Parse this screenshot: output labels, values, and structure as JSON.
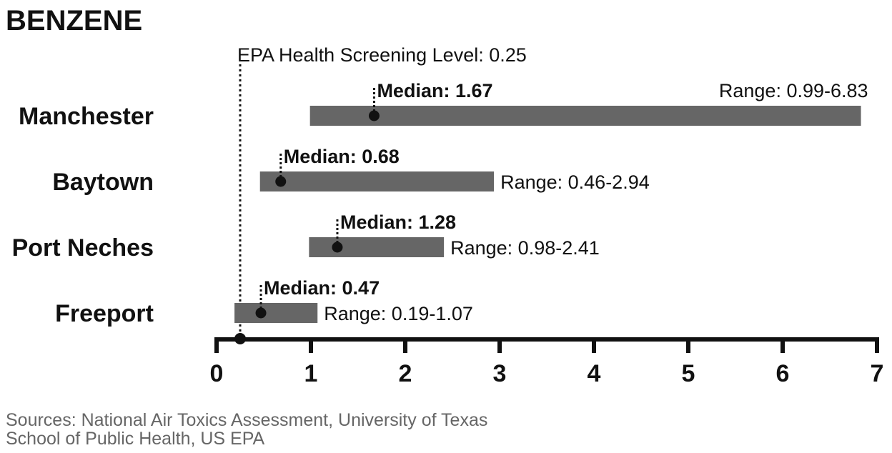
{
  "chart_data": {
    "type": "range-bar",
    "title": "BENZENE",
    "xlim": [
      0,
      7
    ],
    "x_ticks": [
      "0",
      "1",
      "2",
      "3",
      "4",
      "5",
      "6",
      "7"
    ],
    "reference_line": {
      "value": 0.25,
      "label": "EPA Health Screening Level: 0.25"
    },
    "categories": [
      "Manchester",
      "Baytown",
      "Port Neches",
      "Freeport"
    ],
    "series": [
      {
        "city": "Manchester",
        "min": 0.99,
        "max": 6.83,
        "median": 1.67,
        "median_label": "Median: 1.67",
        "range_label": "Range: 0.99-6.83",
        "range_label_position": "above-right"
      },
      {
        "city": "Baytown",
        "min": 0.46,
        "max": 2.94,
        "median": 0.68,
        "median_label": "Median: 0.68",
        "range_label": "Range: 0.46-2.94",
        "range_label_position": "right"
      },
      {
        "city": "Port Neches",
        "min": 0.98,
        "max": 2.41,
        "median": 1.28,
        "median_label": "Median: 1.28",
        "range_label": "Range: 0.98-2.41",
        "range_label_position": "right"
      },
      {
        "city": "Freeport",
        "min": 0.19,
        "max": 1.07,
        "median": 0.47,
        "median_label": "Median: 0.47",
        "range_label": "Range: 0.19-1.07",
        "range_label_position": "right"
      }
    ],
    "colors": {
      "bar": "#666666",
      "axis": "#111111",
      "marker": "#111111",
      "source": "#666666"
    }
  },
  "source": {
    "line1": "Sources: National Air Toxics Assessment, University of Texas",
    "line2": "School of Public Health, US EPA"
  }
}
